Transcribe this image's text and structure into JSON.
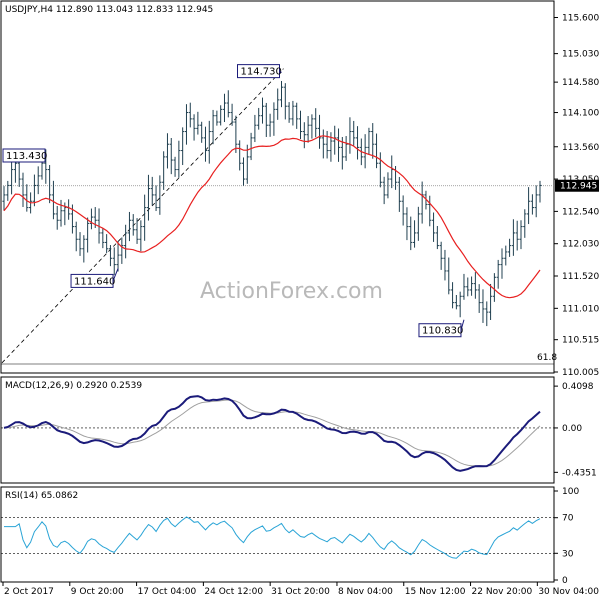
{
  "chart_data": [
    {
      "type": "candlestick",
      "symbol_line": "USDJPY,H4  112.890 113.043 112.833 112.945",
      "watermark": "ActionForex.com",
      "y_ticks": [
        "115.600",
        "115.030",
        "114.580",
        "114.100",
        "113.560",
        "113.050",
        "112.540",
        "112.030",
        "111.520",
        "111.010",
        "110.515",
        "110.005"
      ],
      "ylim": [
        110.005,
        115.75
      ],
      "last_price": "112.945",
      "fib_label": "61.8",
      "annotations": [
        {
          "label": "114.730",
          "index": 73,
          "price": 114.73
        },
        {
          "label": "113.430",
          "index": 11,
          "price": 113.43
        },
        {
          "label": "111.640",
          "index": 30,
          "price": 111.64
        },
        {
          "label": "110.830",
          "index": 121,
          "price": 110.83
        }
      ],
      "x_labels": [
        "2 Oct 2017",
        "9 Oct 20:00",
        "17 Oct 04:00",
        "24 Oct 12:00",
        "31 Oct 20:00",
        "8 Nov 04:00",
        "15 Nov 12:00",
        "22 Nov 20:00",
        "30 Nov 04:00"
      ],
      "closes": [
        112.8,
        112.95,
        113.2,
        113.3,
        113.05,
        112.8,
        112.6,
        112.7,
        112.95,
        113.1,
        113.3,
        113.2,
        112.8,
        112.5,
        112.4,
        112.55,
        112.6,
        112.5,
        112.3,
        112.1,
        111.95,
        112.1,
        112.35,
        112.45,
        112.4,
        112.2,
        112.05,
        111.95,
        111.8,
        111.7,
        111.85,
        112.0,
        112.2,
        112.4,
        112.25,
        112.1,
        112.3,
        112.6,
        112.9,
        112.8,
        112.6,
        113.0,
        113.4,
        113.6,
        113.35,
        113.2,
        113.5,
        113.8,
        114.1,
        114.0,
        113.85,
        113.9,
        113.7,
        113.5,
        113.8,
        114.05,
        113.95,
        114.15,
        114.25,
        114.1,
        113.95,
        113.6,
        113.3,
        113.05,
        113.4,
        113.7,
        113.9,
        114.05,
        114.2,
        113.9,
        113.95,
        114.15,
        114.3,
        114.5,
        114.2,
        114.0,
        114.2,
        114.0,
        113.8,
        113.75,
        113.9,
        114.0,
        113.85,
        113.7,
        113.6,
        113.5,
        113.65,
        113.7,
        113.55,
        113.4,
        113.6,
        113.8,
        113.7,
        113.55,
        113.4,
        113.55,
        113.8,
        113.6,
        113.3,
        113.0,
        112.8,
        113.05,
        113.2,
        113.0,
        112.7,
        112.5,
        112.3,
        112.05,
        112.2,
        112.5,
        112.8,
        112.65,
        112.4,
        112.2,
        112.0,
        111.8,
        111.6,
        111.3,
        111.1,
        111.05,
        111.2,
        111.35,
        111.3,
        111.4,
        111.3,
        111.1,
        111.0,
        110.95,
        111.2,
        111.5,
        111.7,
        111.8,
        111.9,
        112.0,
        112.2,
        112.1,
        112.3,
        112.5,
        112.7,
        112.6,
        112.8,
        112.95
      ],
      "ma_period": 20,
      "macd": {
        "label": "MACD(12,26,9) 0.2920 0.2539",
        "ylim": [
          -0.52,
          0.46
        ],
        "y_ticks": [
          {
            "label": "0.4098",
            "value": 0.4098
          },
          {
            "label": "0.00",
            "value": 0.0
          },
          {
            "label": "-0.4351",
            "value": -0.4351
          }
        ]
      },
      "rsi": {
        "label": "RSI(14) 65.0862",
        "ylim": [
          0,
          100
        ],
        "y_ticks": [
          {
            "label": "100",
            "value": 100
          },
          {
            "label": "70",
            "value": 70
          },
          {
            "label": "30",
            "value": 30
          },
          {
            "label": "0",
            "value": 0
          }
        ]
      },
      "colors": {
        "bull": "#1f3f4f",
        "bear": "#1f3f4f",
        "ma": "#e82020",
        "macd": "#1b1b7a",
        "signal": "#a0a0a0",
        "rsi": "#2aa4d6",
        "frame": "#000000",
        "box_border": "#1b1b7a"
      }
    }
  ]
}
